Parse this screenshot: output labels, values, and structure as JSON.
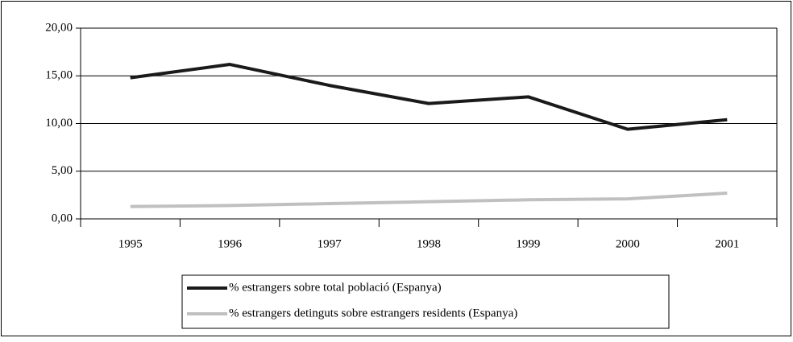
{
  "chart_data": {
    "type": "line",
    "categories": [
      "1995",
      "1996",
      "1997",
      "1998",
      "1999",
      "2000",
      "2001"
    ],
    "series": [
      {
        "name": "% estrangers sobre total població (Espanya)",
        "color": "#1a1a1a",
        "values": [
          14.8,
          16.2,
          14.0,
          12.1,
          12.8,
          9.4,
          10.4
        ]
      },
      {
        "name": "% estrangers detinguts sobre estrangers residents (Espanya)",
        "color": "#c0c0c0",
        "values": [
          1.3,
          1.4,
          1.6,
          1.8,
          2.0,
          2.1,
          2.7
        ]
      }
    ],
    "ylim": [
      0,
      20
    ],
    "yticks": [
      {
        "value": 0,
        "label": "0,00"
      },
      {
        "value": 5,
        "label": "5,00"
      },
      {
        "value": 10,
        "label": "10,00"
      },
      {
        "value": 15,
        "label": "15,00"
      },
      {
        "value": 20,
        "label": "20,00"
      }
    ],
    "grid": true,
    "legend": "bottom"
  }
}
